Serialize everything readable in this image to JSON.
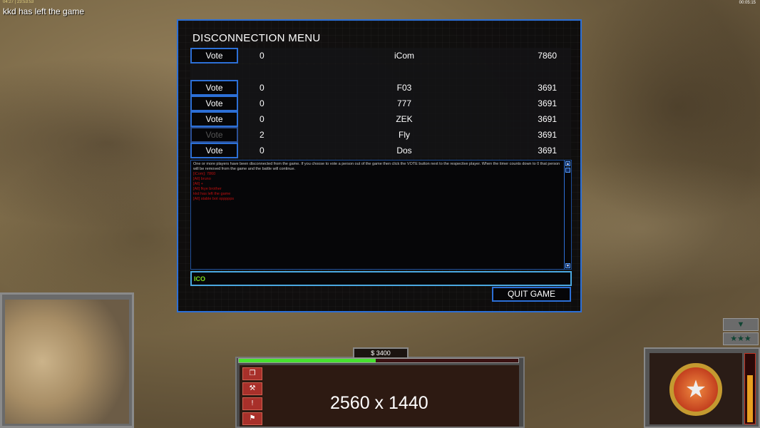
{
  "hud": {
    "top_meta": "04:27 | 23:53:53",
    "system_message": "kkd has left the game",
    "game_time": "00:05:15",
    "credits": "$ 3400",
    "build_progress": 0.49,
    "power_level": 0.7,
    "watermark": "2560 x 1440"
  },
  "dialog": {
    "title": "DISCONNECTION MENU",
    "players": [
      {
        "vote_label": "Vote",
        "votes": "0",
        "name": "iCom",
        "ping": "7860",
        "enabled": true
      },
      {
        "vote_label": "Vote",
        "votes": "0",
        "name": "F03",
        "ping": "3691",
        "enabled": true
      },
      {
        "vote_label": "Vote",
        "votes": "0",
        "name": "777",
        "ping": "3691",
        "enabled": true
      },
      {
        "vote_label": "Vote",
        "votes": "0",
        "name": "ZEK",
        "ping": "3691",
        "enabled": true
      },
      {
        "vote_label": "Vote",
        "votes": "2",
        "name": "Fly",
        "ping": "3691",
        "enabled": false
      },
      {
        "vote_label": "Vote",
        "votes": "0",
        "name": "Dos",
        "ping": "3691",
        "enabled": true
      }
    ],
    "info_text": "One or more players have been disconnected from the game. If you choose to vote a person out of the game then click the VOTE button next to the respective player. When the timer counts down to 0 that person will be removed from the game and the battle will continue.",
    "chat_lines": [
      "[iCom]: 7860",
      "[All] bruno",
      "[All] +",
      "[All] fkye brother",
      "kkd has left the game",
      "[All] stable bot oppppps"
    ],
    "chat_input": "ICO",
    "quit_label": "QUIT GAME"
  },
  "command_bar": {
    "buttons": [
      "windows-icon",
      "wrench-icon",
      "alert-icon",
      "sign-icon"
    ]
  },
  "side_buttons": {
    "collapse": "▼",
    "rank": "★★★"
  }
}
